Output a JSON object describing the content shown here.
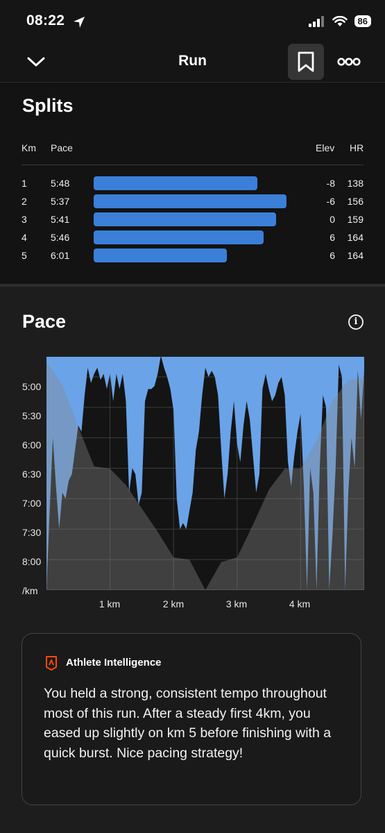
{
  "status": {
    "time": "08:22",
    "battery": "86"
  },
  "header": {
    "title": "Run"
  },
  "splits": {
    "title": "Splits",
    "columns": {
      "km": "Km",
      "pace": "Pace",
      "elev": "Elev",
      "hr": "HR"
    },
    "rows": [
      {
        "km": "1",
        "pace": "5:48",
        "elev": "-8",
        "hr": "138",
        "bar_fraction": 0.85
      },
      {
        "km": "2",
        "pace": "5:37",
        "elev": "-6",
        "hr": "156",
        "bar_fraction": 1.0
      },
      {
        "km": "3",
        "pace": "5:41",
        "elev": "0",
        "hr": "159",
        "bar_fraction": 0.945
      },
      {
        "km": "4",
        "pace": "5:46",
        "elev": "6",
        "hr": "164",
        "bar_fraction": 0.88
      },
      {
        "km": "5",
        "pace": "6:01",
        "elev": "6",
        "hr": "164",
        "bar_fraction": 0.69
      }
    ]
  },
  "pace": {
    "title": "Pace",
    "y_ticks": [
      "5:00",
      "5:30",
      "6:00",
      "6:30",
      "7:00",
      "7:30",
      "8:00",
      "/km"
    ],
    "x_ticks": [
      "1 km",
      "2 km",
      "3 km",
      "4 km"
    ]
  },
  "chart_data": {
    "type": "area",
    "title": "Pace",
    "xlabel": "",
    "ylabel": "/km",
    "x_unit": "km",
    "y_unit": "min/km",
    "y_reversed": true,
    "xlim": [
      0,
      5.0
    ],
    "ylim": [
      4.67,
      8.5
    ],
    "y_ticks": [
      "5:00",
      "5:30",
      "6:00",
      "6:30",
      "7:00",
      "7:30",
      "8:00"
    ],
    "x_ticks": [
      1,
      2,
      3,
      4
    ],
    "grid": true,
    "colors": {
      "pace": "#6aa3e8",
      "elevation": "#8a8a8a"
    },
    "series": [
      {
        "kind": "pace",
        "x": [
          0.0,
          0.05,
          0.1,
          0.15,
          0.2,
          0.25,
          0.3,
          0.35,
          0.4,
          0.45,
          0.5,
          0.55,
          0.6,
          0.65,
          0.7,
          0.75,
          0.8,
          0.85,
          0.9,
          0.95,
          1.0,
          1.05,
          1.1,
          1.15,
          1.2,
          1.25,
          1.3,
          1.35,
          1.4,
          1.45,
          1.5,
          1.55,
          1.6,
          1.65,
          1.7,
          1.75,
          1.8,
          1.85,
          1.9,
          1.95,
          2.0,
          2.05,
          2.1,
          2.15,
          2.2,
          2.25,
          2.3,
          2.35,
          2.4,
          2.45,
          2.5,
          2.55,
          2.6,
          2.65,
          2.7,
          2.75,
          2.8,
          2.85,
          2.9,
          2.95,
          3.0,
          3.05,
          3.1,
          3.15,
          3.2,
          3.25,
          3.3,
          3.35,
          3.4,
          3.45,
          3.5,
          3.55,
          3.6,
          3.65,
          3.7,
          3.75,
          3.8,
          3.85,
          3.9,
          3.95,
          4.0,
          4.05,
          4.1,
          4.15,
          4.2,
          4.25,
          4.3,
          4.35,
          4.4,
          4.45,
          4.5,
          4.55,
          4.6,
          4.65,
          4.7,
          4.75,
          4.8,
          4.85,
          4.9,
          4.95,
          5.0
        ],
        "y": [
          8.5,
          7.2,
          6.0,
          6.8,
          7.5,
          6.9,
          7.0,
          6.7,
          6.6,
          6.2,
          5.8,
          5.9,
          5.3,
          4.85,
          5.1,
          4.95,
          4.85,
          5.05,
          4.95,
          5.2,
          4.95,
          5.4,
          4.95,
          5.2,
          4.95,
          5.4,
          6.9,
          6.5,
          6.6,
          7.1,
          6.9,
          5.4,
          5.2,
          5.2,
          5.15,
          4.95,
          4.65,
          4.85,
          5.0,
          5.2,
          5.55,
          7.0,
          7.5,
          7.4,
          7.5,
          7.2,
          6.9,
          6.2,
          5.9,
          5.3,
          4.85,
          5.0,
          4.9,
          5.0,
          5.3,
          6.2,
          7.0,
          6.6,
          5.9,
          5.4,
          6.1,
          6.4,
          5.8,
          5.4,
          5.7,
          6.3,
          6.9,
          6.6,
          5.2,
          4.95,
          5.2,
          5.4,
          5.3,
          5.1,
          5.0,
          5.3,
          6.4,
          6.8,
          6.3,
          5.9,
          5.6,
          6.8,
          8.5,
          6.5,
          6.9,
          8.5,
          6.5,
          5.3,
          5.5,
          8.5,
          7.6,
          6.5,
          4.8,
          5.0,
          8.5,
          6.9,
          6.0,
          6.5,
          4.9,
          5.7,
          4.9
        ],
        "note": "pace is plotted downward from the top; larger values are slower"
      },
      {
        "kind": "elevation",
        "x": [
          0.0,
          0.25,
          0.5,
          0.75,
          1.0,
          1.25,
          1.5,
          1.75,
          2.0,
          2.25,
          2.5,
          2.75,
          3.0,
          3.25,
          3.5,
          3.75,
          4.0,
          4.25,
          4.5,
          4.75,
          5.0
        ],
        "y_fraction": [
          0.98,
          0.88,
          0.7,
          0.53,
          0.52,
          0.45,
          0.35,
          0.25,
          0.14,
          0.13,
          0.0,
          0.12,
          0.14,
          0.28,
          0.43,
          0.52,
          0.52,
          0.64,
          0.81,
          0.9,
          0.91
        ]
      }
    ]
  },
  "ai": {
    "title": "Athlete Intelligence",
    "body": "You held a strong, consistent tempo throughout most of this run. After a steady first 4km, you eased up slightly on km 5 before finishing with a quick burst. Nice pacing strategy!"
  }
}
